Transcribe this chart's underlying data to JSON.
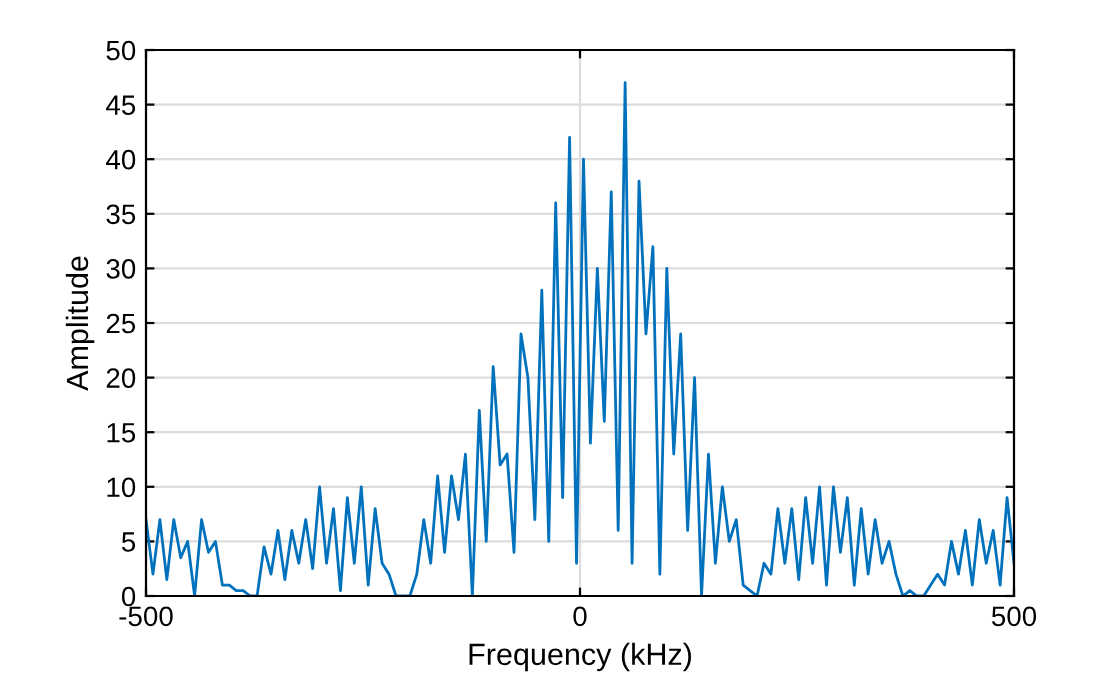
{
  "chart_data": {
    "type": "line",
    "xlabel": "Frequency (kHz)",
    "ylabel": "Amplitude",
    "xlim": [
      -500,
      500
    ],
    "xticks": [
      -500,
      0,
      500
    ],
    "ylim": [
      0,
      50
    ],
    "yticks": [
      0,
      5,
      10,
      15,
      20,
      25,
      30,
      35,
      40,
      45,
      50
    ],
    "grid": true,
    "series": [
      {
        "color": "#0072bd",
        "x": [
          -500,
          -492,
          -484,
          -476,
          -468,
          -460,
          -452,
          -444,
          -436,
          -428,
          -420,
          -412,
          -404,
          -396,
          -388,
          -380,
          -372,
          -364,
          -356,
          -348,
          -340,
          -332,
          -324,
          -316,
          -308,
          -300,
          -292,
          -284,
          -276,
          -268,
          -260,
          -252,
          -244,
          -236,
          -228,
          -220,
          -212,
          -204,
          -196,
          -188,
          -180,
          -172,
          -164,
          -156,
          -148,
          -140,
          -132,
          -124,
          -116,
          -108,
          -100,
          -92,
          -84,
          -76,
          -68,
          -60,
          -52,
          -44,
          -36,
          -28,
          -20,
          -12,
          -4,
          4,
          12,
          20,
          28,
          36,
          44,
          52,
          60,
          68,
          76,
          84,
          92,
          100,
          108,
          116,
          124,
          132,
          140,
          148,
          156,
          164,
          172,
          180,
          188,
          196,
          204,
          212,
          220,
          228,
          236,
          244,
          252,
          260,
          268,
          276,
          284,
          292,
          300,
          308,
          316,
          324,
          332,
          340,
          348,
          356,
          364,
          372,
          380,
          388,
          396,
          404,
          412,
          420,
          428,
          436,
          444,
          452,
          460,
          468,
          476,
          484,
          492,
          500
        ],
        "values": [
          7,
          2,
          7,
          1.5,
          7,
          3.5,
          5,
          0,
          7,
          4,
          5,
          1,
          1,
          0.5,
          0.5,
          0,
          0,
          4.5,
          2,
          6,
          1.5,
          6,
          3,
          7,
          2.5,
          10,
          3,
          8,
          0.5,
          9,
          3,
          10,
          1,
          8,
          3,
          2,
          0,
          0,
          0,
          2,
          7,
          3,
          11,
          4,
          11,
          7,
          13,
          0,
          17,
          5,
          21,
          12,
          13,
          4,
          24,
          20,
          7,
          28,
          5,
          36,
          9,
          42,
          3,
          40,
          14,
          30,
          16,
          37,
          6,
          47,
          3,
          38,
          24,
          32,
          2,
          30,
          13,
          24,
          6,
          20,
          0,
          13,
          3,
          10,
          5,
          7,
          1,
          0.5,
          0,
          3,
          2,
          8,
          3,
          8,
          1.5,
          9,
          3,
          10,
          1,
          10,
          4,
          9,
          1,
          8,
          2,
          7,
          3,
          5,
          2,
          0,
          0.5,
          0,
          0,
          1,
          2,
          1,
          5,
          2,
          6,
          1,
          7,
          3,
          6,
          1,
          9,
          3
        ]
      }
    ]
  }
}
